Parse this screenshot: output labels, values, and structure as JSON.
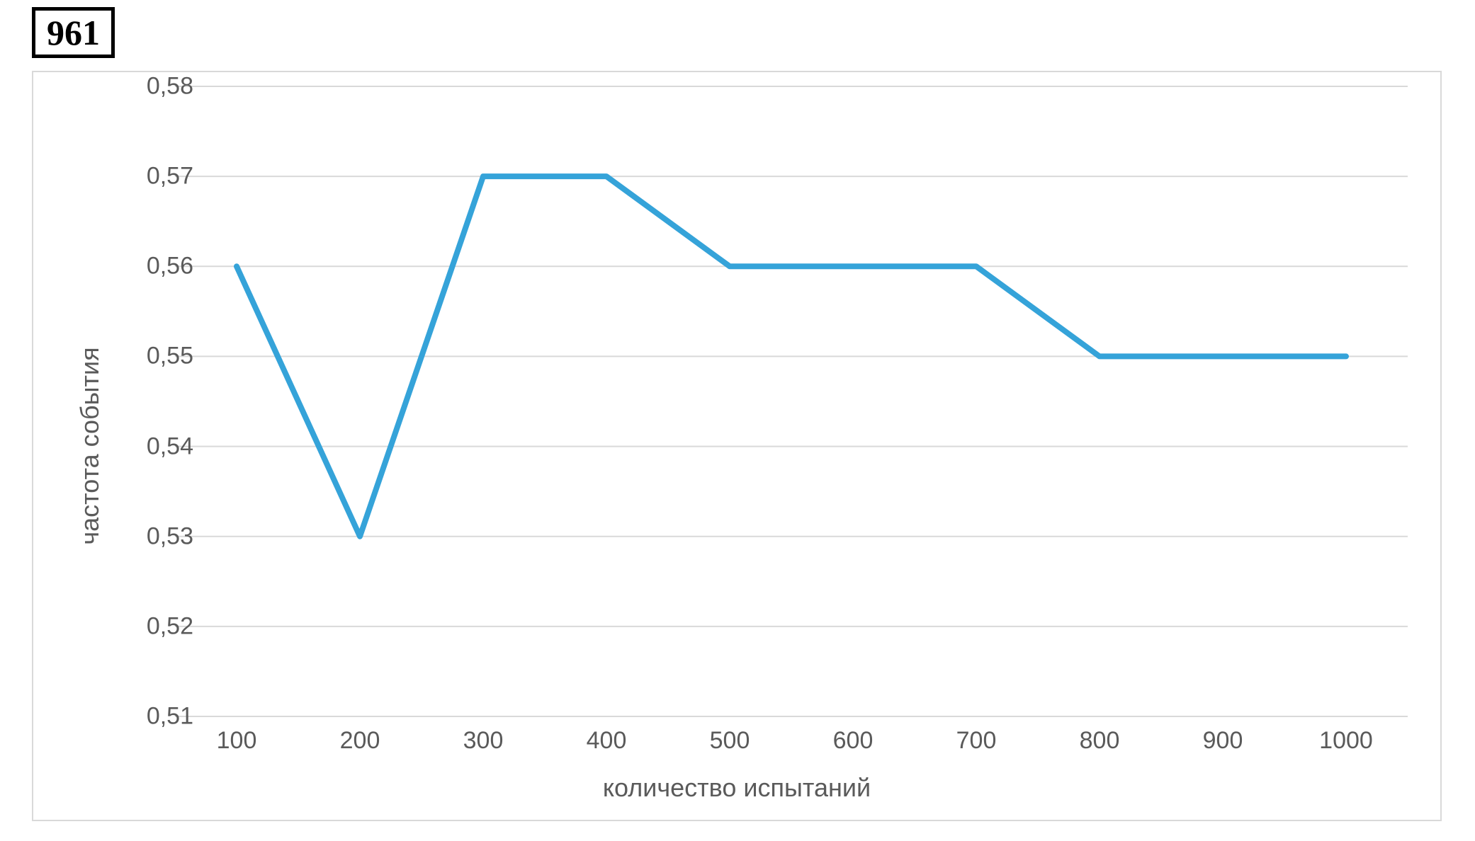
{
  "badge": "961",
  "chart": {
    "type": "line",
    "x_values": [
      100,
      200,
      300,
      400,
      500,
      600,
      700,
      800,
      900,
      1000
    ],
    "y_values": [
      0.56,
      0.53,
      0.57,
      0.57,
      0.56,
      0.56,
      0.56,
      0.55,
      0.55,
      0.55
    ],
    "x_label": "количество испытаний",
    "y_label": "частота события",
    "x_ticks": [
      100,
      200,
      300,
      400,
      500,
      600,
      700,
      800,
      900,
      1000
    ],
    "y_ticks": [
      "0,51",
      "0,52",
      "0,53",
      "0,54",
      "0,55",
      "0,56",
      "0,57",
      "0,58"
    ],
    "y_tick_values": [
      0.51,
      0.52,
      0.53,
      0.54,
      0.55,
      0.56,
      0.57,
      0.58
    ],
    "ylim": [
      0.51,
      0.58
    ],
    "xlim": [
      100,
      1000
    ],
    "line_color": "#35a3d9",
    "line_width": 8,
    "grid_color": "#d9d9d9",
    "background_color": "#ffffff",
    "border_color": "#d9d9d9",
    "tick_font_color": "#5a5a5a",
    "tick_fontsize": 34,
    "axis_label_fontsize": 36
  }
}
